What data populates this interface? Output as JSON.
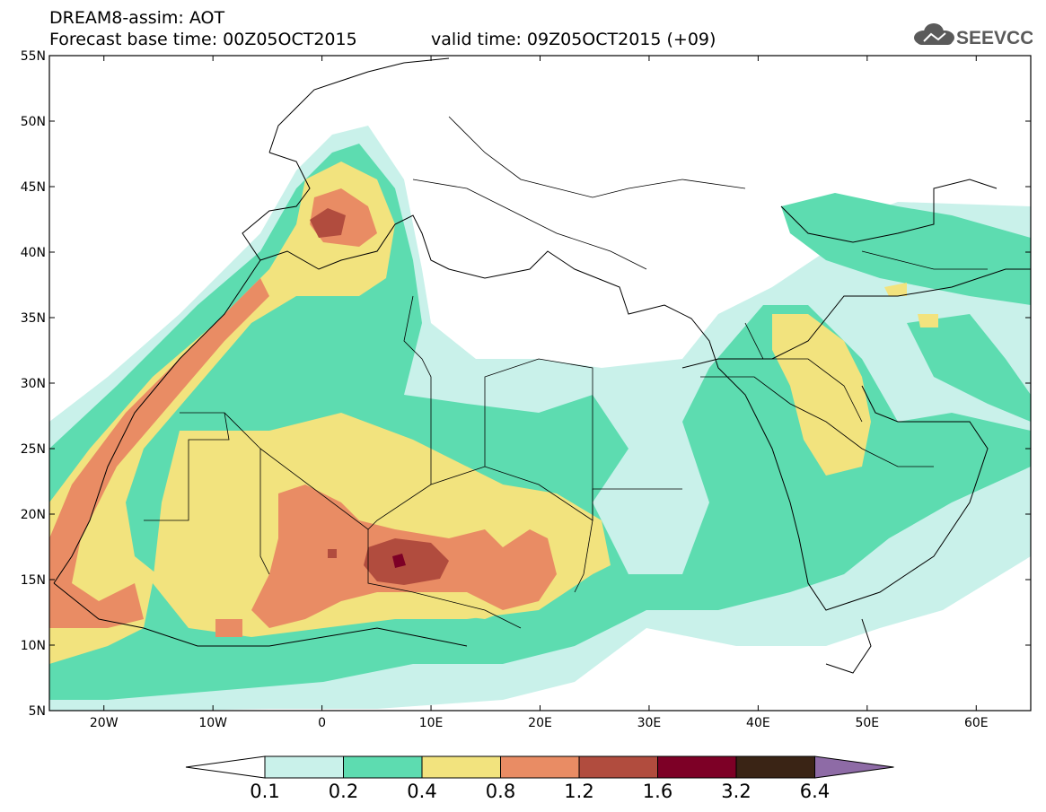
{
  "header": {
    "title": "DREAM8-assim: AOT",
    "base_time": "Forecast base time: 00Z05OCT2015",
    "valid_time": "valid time: 09Z05OCT2015 (+09)",
    "logo_text": "SEEVCCC"
  },
  "map": {
    "lat_labels": [
      "55N",
      "50N",
      "45N",
      "40N",
      "35N",
      "30N",
      "25N",
      "20N",
      "15N",
      "10N",
      "5N"
    ],
    "lon_labels": [
      "20W",
      "10W",
      "0",
      "10E",
      "20E",
      "30E",
      "40E",
      "50E",
      "60E"
    ],
    "lon_range": [
      -25,
      65
    ],
    "lat_range": [
      5,
      55
    ],
    "projection": "lat-lon"
  },
  "colorbar": {
    "labels": [
      "0.1",
      "0.2",
      "0.4",
      "0.8",
      "1.2",
      "1.6",
      "3.2",
      "6.4"
    ],
    "colors": [
      "#c9f1ea",
      "#5ddcb0",
      "#f2e37e",
      "#e98c64",
      "#b14c3e",
      "#7d0026",
      "#3a2415",
      "#8e6ba6"
    ],
    "extend": "both"
  }
}
